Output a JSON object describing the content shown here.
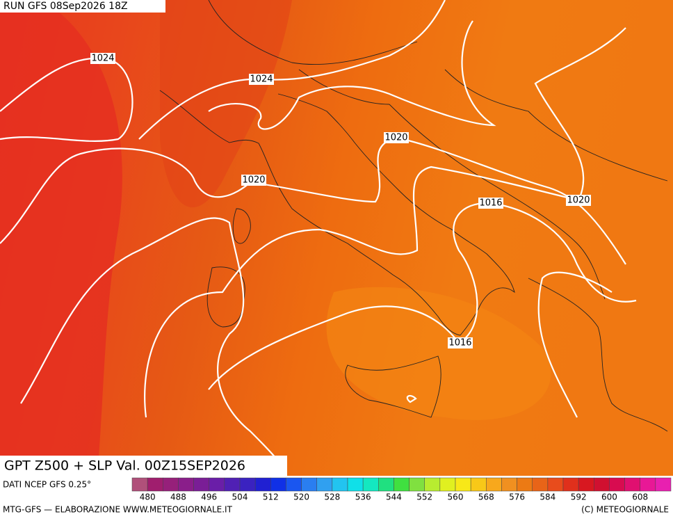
{
  "header": {
    "run": "RUN GFS 08Sep2026 18Z"
  },
  "footer": {
    "title": "GPT Z500 + SLP Val. 00Z15SEP2026",
    "source": "DATI NCEP GFS 0.25°",
    "credit_left": "MTG-GFS — ELABORAZIONE WWW.METEOGIORNALE.IT",
    "credit_right": "(C) METEOGIORNALE"
  },
  "isobar_labels": [
    "1024",
    "1024",
    "1020",
    "1020",
    "1016",
    "1020",
    "1016"
  ],
  "colorbar": {
    "ticks": [
      480,
      488,
      496,
      504,
      512,
      520,
      528,
      536,
      544,
      552,
      560,
      568,
      576,
      584,
      592,
      600,
      608
    ],
    "colors": [
      "#b0507a",
      "#a01e6e",
      "#96207a",
      "#8a1e8a",
      "#7a1e96",
      "#6a1ea8",
      "#5020b4",
      "#3a22c0",
      "#2020d2",
      "#1030e6",
      "#1a56f0",
      "#2a7ef0",
      "#30a0f0",
      "#22c4f0",
      "#10e0e8",
      "#14e8c0",
      "#20e080",
      "#40e040",
      "#80e040",
      "#b8ec30",
      "#e0f020",
      "#f8e818",
      "#f8c818",
      "#f8a81c",
      "#f09020",
      "#ec7a14",
      "#e86418",
      "#e84c1c",
      "#e0301c",
      "#d81820",
      "#d01030",
      "#d80c50",
      "#e01070",
      "#e81896",
      "#e820b0"
    ]
  }
}
